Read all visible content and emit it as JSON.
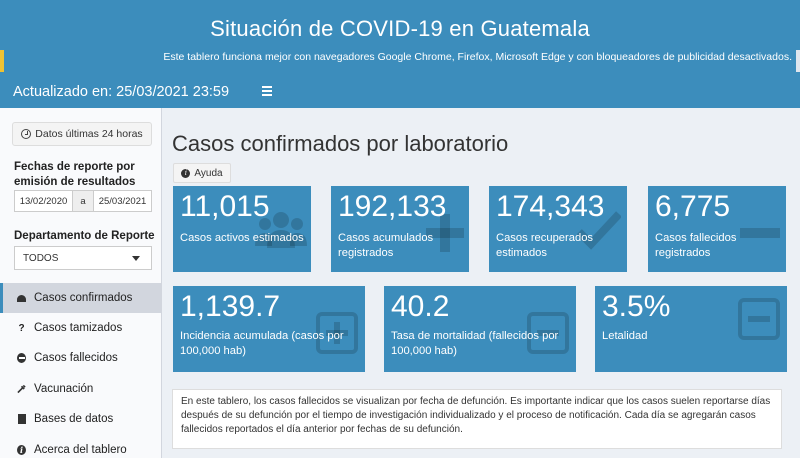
{
  "header": {
    "title": "Situación de COVID-19 en Guatemala",
    "subtitle": "Este tablero funciona mejor con navegadores Google Chrome, Firefox, Microsoft Edge y con bloqueadores de publicidad desactivados.",
    "updated": "Actualizado en: 25/03/2021 23:59"
  },
  "sidebar": {
    "last24_button": "Datos últimas 24 horas",
    "date_label": "Fechas de reporte por emisión de resultados",
    "date_start": "13/02/2020",
    "date_sep": "a",
    "date_end": "25/03/2021",
    "dept_label": "Departamento de Reporte",
    "dept_value": "TODOS",
    "menu": [
      {
        "label": "Casos confirmados",
        "icon": "gauge-icon"
      },
      {
        "label": "Casos tamizados",
        "icon": "question-icon"
      },
      {
        "label": "Casos fallecidos",
        "icon": "minus-circle-icon"
      },
      {
        "label": "Vacunación",
        "icon": "syringe-icon"
      },
      {
        "label": "Bases de datos",
        "icon": "file-icon"
      },
      {
        "label": "Acerca del tablero",
        "icon": "info-icon"
      }
    ]
  },
  "main": {
    "title": "Casos confirmados por laboratorio",
    "help_label": "Ayuda",
    "cards": [
      {
        "value": "11,015",
        "caption": "Casos activos estimados",
        "icon": "users-icon"
      },
      {
        "value": "192,133",
        "caption": "Casos acumulados registrados",
        "icon": "plus-icon"
      },
      {
        "value": "174,343",
        "caption": "Casos recuperados estimados",
        "icon": "check-icon"
      },
      {
        "value": "6,775",
        "caption": "Casos fallecidos registrados",
        "icon": "minus-icon"
      },
      {
        "value": "1,139.7",
        "caption": "Incidencia acumulada (casos por 100,000 hab)",
        "icon": "plus-square-icon"
      },
      {
        "value": "40.2",
        "caption": "Tasa de mortalidad (fallecidos por 100,000 hab)",
        "icon": "minus-square-icon"
      },
      {
        "value": "3.5%",
        "caption": "Letalidad",
        "icon": "minus-square-icon"
      }
    ],
    "note": "En este tablero, los casos fallecidos se visualizan por fecha de defunción. Es importante indicar que los casos suelen reportarse días después de su defunción por el tiempo de investigación individualizado y el proceso de notificación. Cada día se agregarán casos fallecidos reportados el día anterior por fechas de su defunción."
  },
  "colors": {
    "primary": "#3c8dbc",
    "background": "#ecf0f5",
    "active_menu": "#d2d6de"
  }
}
